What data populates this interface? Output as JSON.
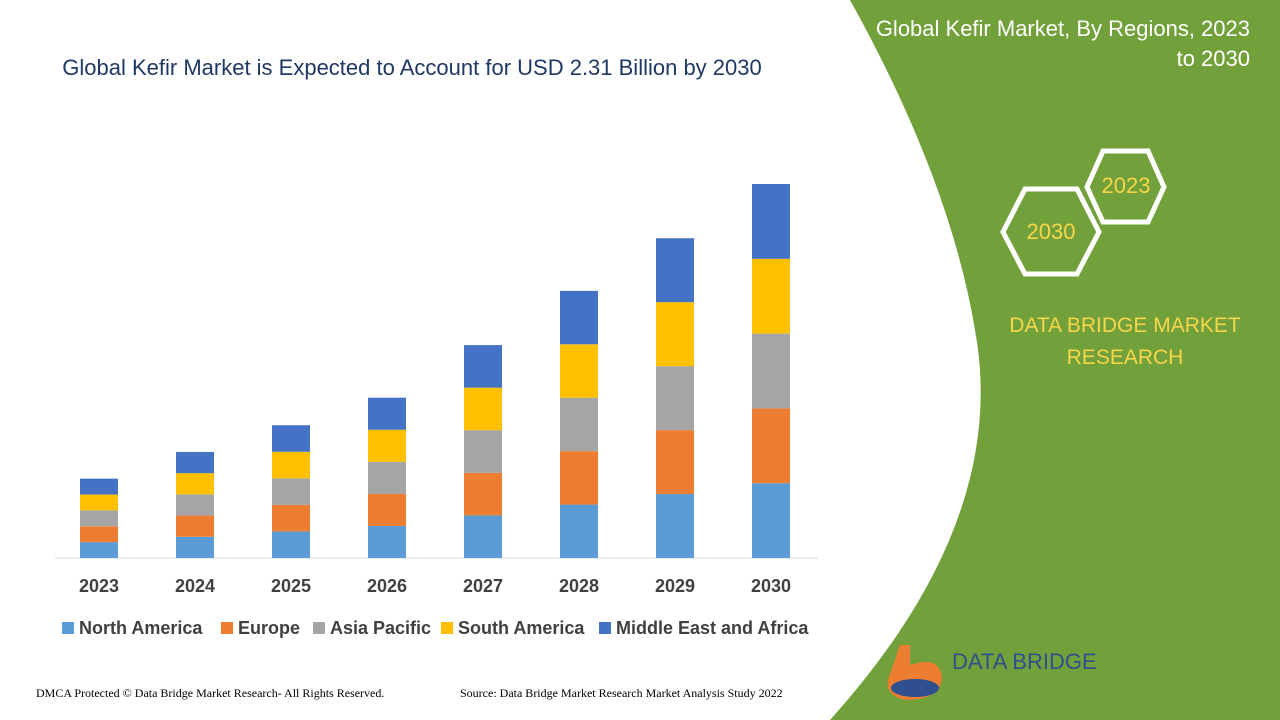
{
  "chart_data": {
    "type": "stacked-bar",
    "title": "Global Kefir Market is Expected to Account for USD 2.31 Billion by 2030",
    "categories": [
      "2023",
      "2024",
      "2025",
      "2026",
      "2027",
      "2028",
      "2029",
      "2030"
    ],
    "series": [
      {
        "name": "North America",
        "color": "#5b9bd5",
        "values": [
          0.098,
          0.131,
          0.164,
          0.198,
          0.263,
          0.33,
          0.395,
          0.462
        ]
      },
      {
        "name": "Europe",
        "color": "#ed7d31",
        "values": [
          0.098,
          0.131,
          0.164,
          0.198,
          0.263,
          0.33,
          0.395,
          0.462
        ]
      },
      {
        "name": "Asia Pacific",
        "color": "#a5a5a5",
        "values": [
          0.098,
          0.131,
          0.164,
          0.198,
          0.263,
          0.33,
          0.395,
          0.462
        ]
      },
      {
        "name": "South America",
        "color": "#ffc000",
        "values": [
          0.098,
          0.131,
          0.164,
          0.198,
          0.263,
          0.33,
          0.395,
          0.462
        ]
      },
      {
        "name": "Middle East and Africa",
        "color": "#4472c4",
        "values": [
          0.098,
          0.131,
          0.164,
          0.198,
          0.263,
          0.33,
          0.395,
          0.462
        ]
      }
    ]
  },
  "panel": {
    "title": "Global Kefir Market, By Regions, 2023 to 2030",
    "hex_top": "2023",
    "hex_bottom": "2030",
    "brand": "DATA BRIDGE MARKET RESEARCH",
    "logo": "DATA BRIDGE"
  },
  "footer": {
    "rights": "DMCA Protected © Data Bridge Market Research- All Rights Reserved.",
    "source": "Source: Data Bridge Market Research Market Analysis Study 2022"
  }
}
